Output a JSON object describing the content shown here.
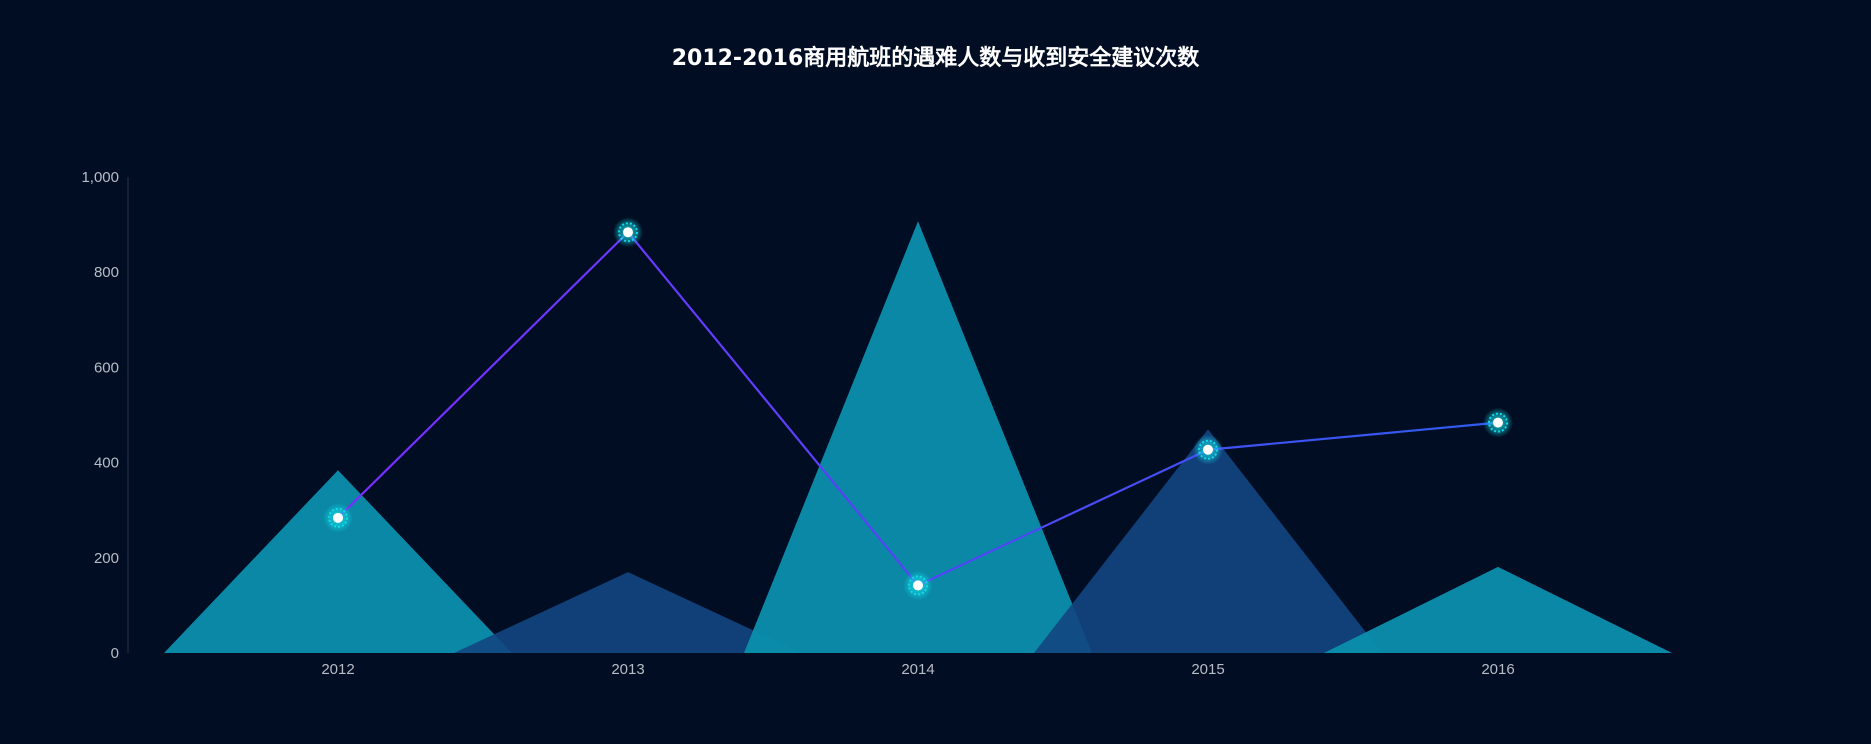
{
  "chart_data": {
    "type": "bar",
    "title": "2012-2016商用航班的遇难人数与收到安全建议次数",
    "categories": [
      "2012",
      "2013",
      "2014",
      "2015",
      "2016"
    ],
    "y_ticks": [
      "0",
      "200",
      "400",
      "600",
      "800",
      "1,000"
    ],
    "ylim": [
      0,
      1000
    ],
    "grid": false,
    "series": [
      {
        "kind": "pictorial-triangle",
        "values": [
          384,
          170,
          907,
          470,
          181
        ]
      },
      {
        "kind": "line",
        "values": [
          284,
          884,
          142,
          427,
          484
        ]
      }
    ],
    "colors": {
      "background": "#010d22",
      "triangle_light": "#0b8fad",
      "triangle_dark": "#134682",
      "line_start": "#7a2cff",
      "line_end": "#2f5cf0",
      "marker_glow": "#13d8e6",
      "marker_core": "#ffffff"
    }
  }
}
